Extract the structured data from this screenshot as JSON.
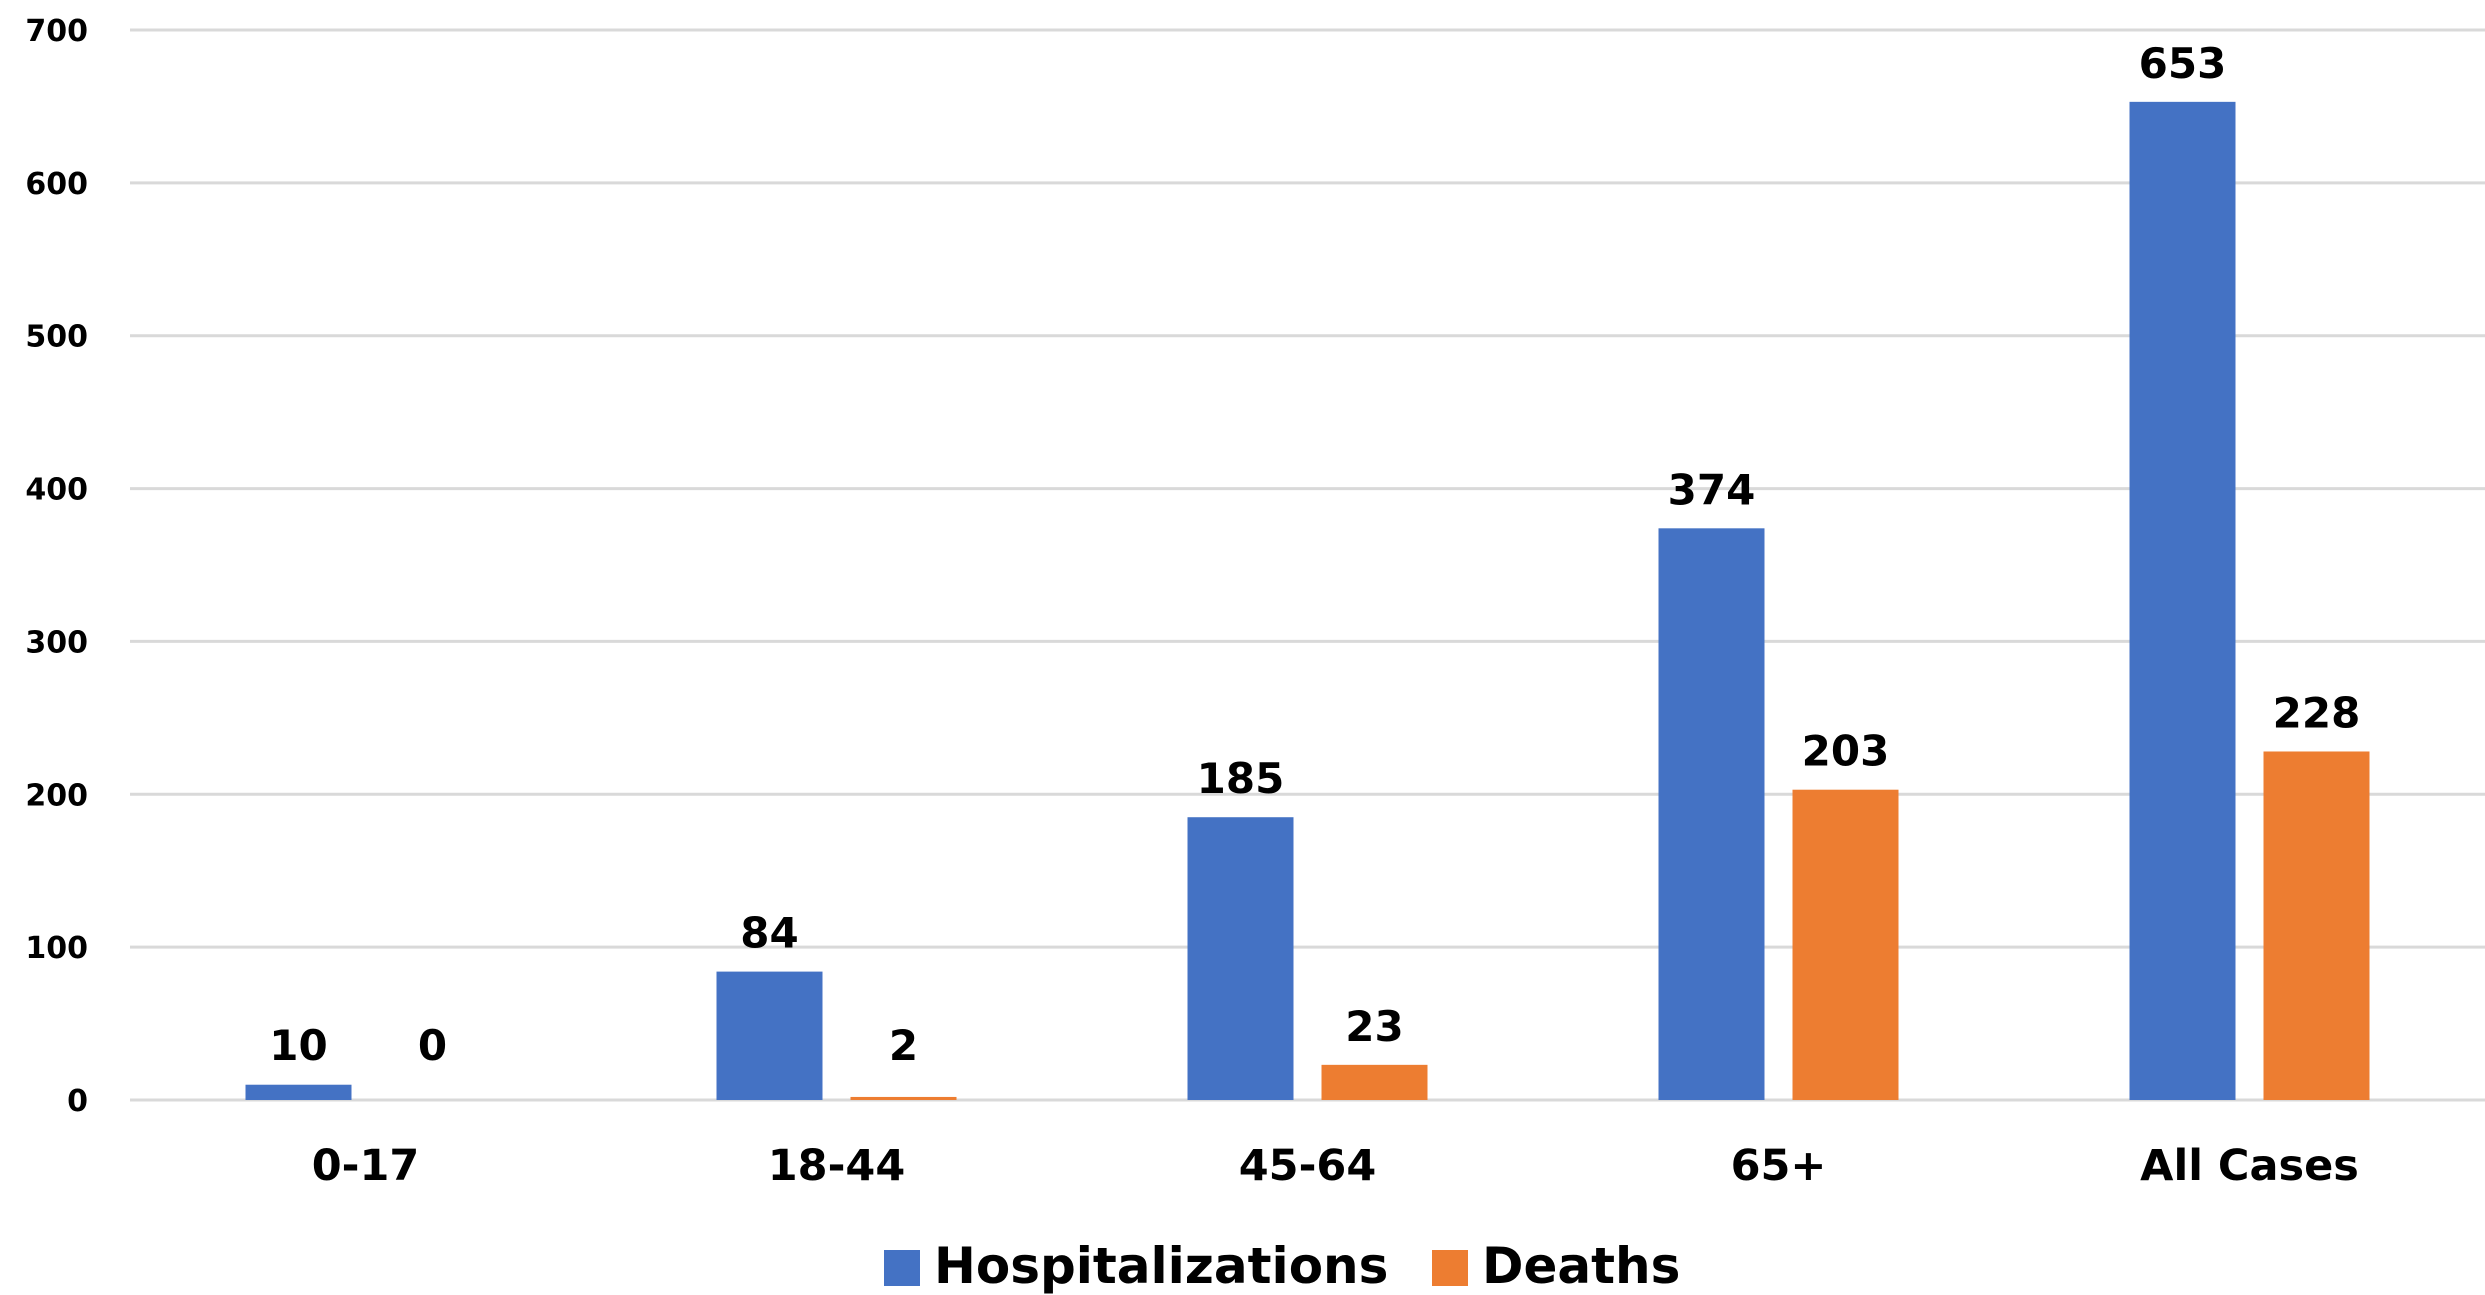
{
  "chart_data": {
    "type": "bar",
    "categories": [
      "0-17",
      "18-44",
      "45-64",
      "65+",
      "All Cases"
    ],
    "series": [
      {
        "name": "Hospitalizations",
        "values": [
          10,
          84,
          185,
          374,
          653
        ],
        "color": "#4472c4"
      },
      {
        "name": "Deaths",
        "values": [
          0,
          2,
          23,
          203,
          228
        ],
        "color": "#ed7d31"
      }
    ],
    "ylim": [
      0,
      700
    ],
    "yticks": [
      0,
      100,
      200,
      300,
      400,
      500,
      600,
      700
    ],
    "grid": true,
    "legend_position": "bottom",
    "data_labels": true
  }
}
